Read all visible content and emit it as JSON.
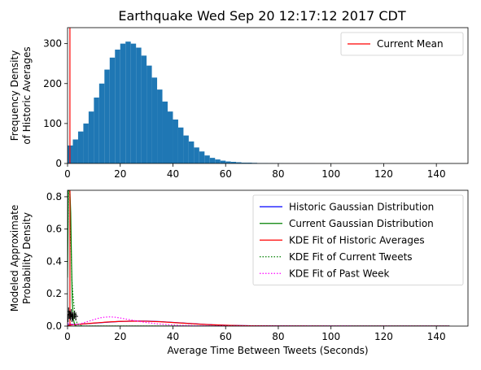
{
  "title": "Earthquake Wed Sep 20 12:17:12 2017 CDT",
  "chart_data": [
    {
      "type": "bar",
      "ylabel": [
        "Frequency Density",
        "of Historic Averages"
      ],
      "xlim": [
        0,
        152
      ],
      "ylim": [
        0,
        340
      ],
      "xticks": [
        0,
        20,
        40,
        60,
        80,
        100,
        120,
        140
      ],
      "yticks": [
        0,
        100,
        200,
        300
      ],
      "histogram": {
        "color": "#1f77b4",
        "bin_centers": [
          1,
          3,
          5,
          7,
          9,
          11,
          13,
          15,
          17,
          19,
          21,
          23,
          25,
          27,
          29,
          31,
          33,
          35,
          37,
          39,
          41,
          43,
          45,
          47,
          49,
          51,
          53,
          55,
          57,
          59,
          61,
          63,
          65,
          67,
          69,
          71,
          73,
          75,
          77,
          79,
          81,
          83,
          85,
          87,
          89,
          91,
          93,
          95,
          97,
          99,
          101,
          103,
          105,
          107,
          109,
          111,
          113,
          115,
          117,
          119,
          121,
          123,
          125,
          127,
          129,
          131,
          133,
          135,
          137,
          139,
          141,
          143,
          145
        ],
        "values": [
          45,
          60,
          80,
          100,
          130,
          165,
          200,
          235,
          265,
          285,
          300,
          305,
          300,
          290,
          270,
          245,
          215,
          185,
          155,
          130,
          110,
          90,
          70,
          55,
          40,
          30,
          20,
          14,
          10,
          7,
          5,
          4,
          3,
          2,
          2,
          1.5,
          1,
          1,
          0.8,
          0.6,
          0.5,
          0.4,
          0.3,
          0.3,
          0.2,
          0.2,
          0.2,
          0.1,
          0.1,
          0.1,
          0.1,
          0.1,
          0.1,
          0.1,
          0.1,
          0.1,
          0.1,
          0.1,
          0.1,
          0.1,
          0.1,
          0.1,
          0.1,
          0.1,
          0.1,
          0.1,
          0.1,
          0.1,
          0.1,
          0.1,
          0.1,
          0.1,
          0.1
        ]
      },
      "vlines": [
        {
          "name": "Current Mean",
          "x": 0.9,
          "color": "#ff0000"
        }
      ],
      "legend": {
        "placement": "top-right",
        "entries": [
          {
            "label": "Current Mean",
            "color": "#ff0000",
            "style": "solid"
          }
        ]
      }
    },
    {
      "type": "line",
      "xlabel": "Average Time Between Tweets (Seconds)",
      "ylabel": [
        "Modeled Approximate",
        "Probability Density"
      ],
      "xlim": [
        0,
        152
      ],
      "ylim": [
        0,
        0.84
      ],
      "xticks": [
        0,
        20,
        40,
        60,
        80,
        100,
        120,
        140
      ],
      "yticks": [
        "0.0",
        "0.2",
        "0.4",
        "0.6",
        "0.8"
      ],
      "series": [
        {
          "name": "Historic Gaussian Distribution",
          "color": "#0000ff",
          "style": "solid",
          "x": [
            0,
            5,
            10,
            15,
            20,
            25,
            30,
            35,
            40,
            45,
            50,
            55,
            60,
            65,
            70,
            80,
            90,
            100,
            120,
            145
          ],
          "y": [
            0.008,
            0.012,
            0.018,
            0.024,
            0.029,
            0.031,
            0.031,
            0.028,
            0.023,
            0.018,
            0.013,
            0.008,
            0.005,
            0.003,
            0.002,
            0.001,
            0,
            0,
            0,
            0
          ]
        },
        {
          "name": "Current Gaussian Distribution",
          "color": "#008000",
          "style": "solid",
          "x": [
            0,
            0.3,
            0.6,
            0.9,
            1.2,
            1.5,
            1.8,
            2.2,
            2.8,
            3.5,
            145
          ],
          "y": [
            0.3,
            0.84,
            0.84,
            0.84,
            0.7,
            0.4,
            0.15,
            0.04,
            0.005,
            0,
            0
          ]
        },
        {
          "name": "KDE Fit of Historic Averages",
          "color": "#ff0000",
          "style": "solid",
          "x": [
            0,
            2,
            5,
            10,
            15,
            20,
            25,
            30,
            35,
            40,
            45,
            50,
            55,
            60,
            65,
            70,
            80,
            90,
            100,
            120,
            145
          ],
          "y": [
            0.004,
            0.008,
            0.012,
            0.019,
            0.025,
            0.029,
            0.031,
            0.03,
            0.027,
            0.022,
            0.017,
            0.012,
            0.008,
            0.005,
            0.003,
            0.002,
            0.001,
            0.0005,
            0.0002,
            0.0001,
            0
          ]
        },
        {
          "name": "KDE Fit of Current Tweets",
          "color": "#008000",
          "style": "dotted",
          "x": [
            0,
            0.4,
            0.8,
            1.2,
            1.6,
            2.0,
            2.5,
            3.0,
            3.6,
            4.5,
            6,
            145
          ],
          "y": [
            0.5,
            0.84,
            0.84,
            0.6,
            0.3,
            0.2,
            0.12,
            0.05,
            0.02,
            0.005,
            0,
            0
          ]
        },
        {
          "name": "KDE Fit of Past Week",
          "color": "#ff00ff",
          "style": "dotted",
          "x": [
            0,
            2,
            4,
            6,
            8,
            10,
            12,
            14,
            16,
            18,
            20,
            22,
            24,
            26,
            28,
            30,
            32,
            34,
            38,
            42,
            50,
            60,
            145
          ],
          "y": [
            0.02,
            0.008,
            0.01,
            0.02,
            0.03,
            0.04,
            0.05,
            0.055,
            0.057,
            0.055,
            0.05,
            0.044,
            0.038,
            0.032,
            0.027,
            0.022,
            0.018,
            0.014,
            0.009,
            0.005,
            0.002,
            0.001,
            0
          ]
        }
      ],
      "vlines": [
        {
          "x": 0.9,
          "color": "#ff0000"
        }
      ],
      "rug": {
        "color": "#000000",
        "points": [
          {
            "x": 0.4,
            "y": 0.09
          },
          {
            "x": 0.7,
            "y": 0.07
          },
          {
            "x": 1.1,
            "y": 0.06
          },
          {
            "x": 1.4,
            "y": 0.08
          },
          {
            "x": 2.0,
            "y": 0.06
          },
          {
            "x": 2.6,
            "y": 0.07
          },
          {
            "x": 3.1,
            "y": 0.06
          },
          {
            "x": 0.2,
            "y": 0.05
          },
          {
            "x": 1.7,
            "y": 0.05
          }
        ]
      },
      "legend": {
        "placement": "top-right",
        "entries": [
          {
            "label": "Historic Gaussian Distribution",
            "color": "#0000ff",
            "style": "solid"
          },
          {
            "label": "Current Gaussian Distribution",
            "color": "#008000",
            "style": "solid"
          },
          {
            "label": "KDE Fit of Historic Averages",
            "color": "#ff0000",
            "style": "solid"
          },
          {
            "label": "KDE Fit of Current Tweets",
            "color": "#008000",
            "style": "dotted"
          },
          {
            "label": "KDE Fit of Past Week",
            "color": "#ff00ff",
            "style": "dotted"
          }
        ]
      }
    }
  ]
}
